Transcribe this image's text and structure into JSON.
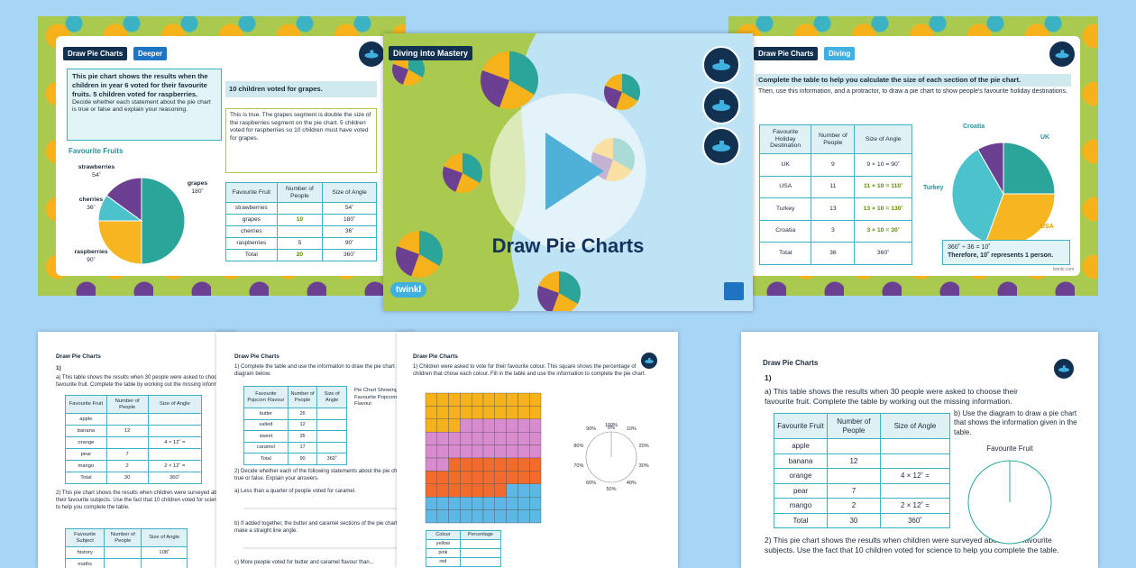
{
  "left_slide": {
    "tag": "Draw Pie Charts",
    "level": "Deeper",
    "question": "This pie chart shows the results when the children in year 6 voted for their favourite fruits. 5 children voted for raspberries.",
    "instruction": "Decide whether each statement about the pie chart is true or false and explain your reasoning.",
    "statement": "10 children voted for grapes.",
    "answer": "This is true. The grapes segment is double the size of the raspberries segment on the pie chart. 5 children voted for raspberries so 10 children must have voted for grapes.",
    "chart_title": "Favourite Fruits",
    "pie": [
      {
        "name": "grapes",
        "value": 180,
        "label": "180˚",
        "color": "#2ba59a"
      },
      {
        "name": "raspberries",
        "value": 90,
        "label": "90˚",
        "color": "#f7b520"
      },
      {
        "name": "cherries",
        "value": 36,
        "label": "36˚",
        "color": "#4cc3cc"
      },
      {
        "name": "strawberries",
        "value": 54,
        "label": "54˚",
        "color": "#6b3f91"
      }
    ],
    "table": {
      "header": [
        "Favourite Fruit",
        "Number of People",
        "Size of Angle"
      ],
      "rows": [
        [
          "strawberries",
          null,
          "54˚"
        ],
        [
          "grapes",
          "10",
          "180˚"
        ],
        [
          "cherries",
          null,
          "36˚"
        ],
        [
          "raspberries",
          "5",
          "90˚"
        ],
        [
          "Total",
          "20",
          "360˚"
        ]
      ]
    }
  },
  "center_slide": {
    "tag": "Diving into Mastery",
    "title": "Draw Pie Charts",
    "logo": "twinkl"
  },
  "right_slide": {
    "tag": "Draw Pie Charts",
    "level": "Diving",
    "intro": "Complete the table to help you calculate the size of each section of the pie chart.",
    "instruction": "Then, use this information, and a protractor, to draw a pie chart to show people's favourite holiday destinations.",
    "table": {
      "header": [
        "Favourite Holiday Destination",
        "Number of People",
        "Size of Angle"
      ],
      "rows": [
        [
          "UK",
          "9",
          "9 × 10 = 90˚"
        ],
        [
          "USA",
          "11",
          "11 × 10 = 110˚"
        ],
        [
          "Turkey",
          "13",
          "13 × 10 = 130˚"
        ],
        [
          "Croatia",
          "3",
          "3 × 10 = 30˚"
        ],
        [
          "Total",
          "36",
          "360˚"
        ]
      ]
    },
    "pie": [
      {
        "name": "UK",
        "value": 90,
        "color": "#2ba59a"
      },
      {
        "name": "USA",
        "value": 110,
        "color": "#f7b520"
      },
      {
        "name": "Turkey",
        "value": 130,
        "color": "#4cc3cc"
      },
      {
        "name": "Croatia",
        "value": 30,
        "color": "#6b3f91"
      }
    ],
    "note": "360˚ ÷ 36 = 10˚",
    "note_conclusion": "Therefore, 10˚ represents 1 person.",
    "footer": "twinkl.com"
  },
  "worksheet_fruit": {
    "title": "Draw Pie Charts",
    "number": "1)",
    "part_a": "a) This table shows the results when 30 people were asked to choose their favourite fruit. Complete the table by working out the missing information.",
    "table": {
      "header": [
        "Favourite Fruit",
        "Number of People",
        "Size of Angle"
      ],
      "rows": [
        [
          "apple",
          null,
          null
        ],
        [
          "banana",
          "12",
          null
        ],
        [
          "orange",
          null,
          "4 × 12˚ ="
        ],
        [
          "pear",
          "7",
          null
        ],
        [
          "mango",
          "2",
          "2 × 12˚ ="
        ],
        [
          "Total",
          "30",
          "360˚"
        ]
      ]
    },
    "part_b": "b) Use the diagram to draw a pie chart that shows the information given in the table.",
    "chart_title": "Favourite Fruit",
    "question_2": "2) This pie chart shows the results when children were surveyed about their favourite subjects. Use the fact that 10 children voted for science to help you complete the table.",
    "subject_table": {
      "header": [
        "Favourite Subject",
        "Number of People",
        "Size of Angle"
      ],
      "rows": [
        [
          "history",
          null,
          "108˚"
        ],
        [
          "maths",
          null,
          null
        ]
      ]
    }
  },
  "worksheet_popcorn": {
    "title": "Draw Pie Charts",
    "question_1": "1) Complete the table and use the information to draw the pie chart in the diagram below.",
    "table": {
      "header": [
        "Favourite Popcorn Flavour",
        "Number of People",
        "Size of Angle"
      ],
      "rows": [
        [
          "butter",
          "26",
          null
        ],
        [
          "salted",
          "12",
          null
        ],
        [
          "sweet",
          "35",
          null
        ],
        [
          "caramel",
          "17",
          null
        ],
        [
          "Total",
          "90",
          "360˚"
        ]
      ]
    },
    "chart_title": "Pie Chart Showing Favourite Popcorn Flavour",
    "question_2": "2) Decide whether each of the following statements about the pie chart is true or false. Explain your answers.",
    "part_a": "a) Less than a quarter of people voted for caramel.",
    "part_b": "b) If added together, the butter and caramel sections of the pie chart make a straight line angle.",
    "part_c": "c) More people voted for butter and caramel flavour than..."
  },
  "worksheet_colour": {
    "title": "Draw Pie Charts",
    "question_1": "1) Children were asked to vote for their favourite colour. This square shows the percentage of children that chose each colour. Fill in the table and use the information to complete the pie chart.",
    "grid": [
      {
        "color": "#f6b21b",
        "value": 23
      },
      {
        "color": "#d98bd0",
        "value": 29
      },
      {
        "color": "#f26a2c",
        "value": 25
      },
      {
        "color": "#5db8e6",
        "value": 23
      }
    ],
    "protractor_top": "100%",
    "protractor_labels": [
      "0%",
      "10%",
      "20%",
      "30%",
      "40%",
      "50%",
      "60%",
      "70%",
      "80%",
      "90%"
    ],
    "table": {
      "header": [
        "Colour",
        "Percentage"
      ],
      "rows": [
        [
          "yellow",
          null
        ],
        [
          "pink",
          null
        ],
        [
          "red",
          null
        ]
      ]
    }
  }
}
